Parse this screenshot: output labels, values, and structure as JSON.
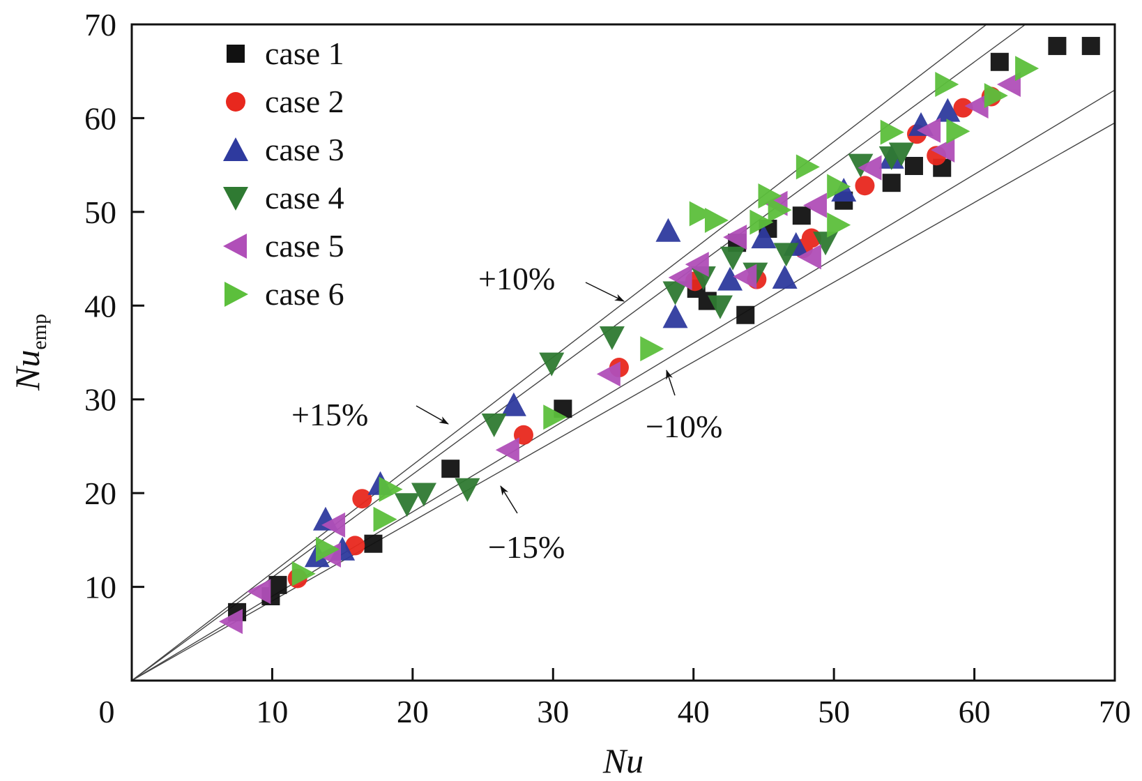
{
  "chart_data": {
    "type": "scatter",
    "title": "",
    "xlabel": "Nu",
    "ylabel": "Nu",
    "ylabel_subscript": "emp",
    "xlim": [
      0,
      70
    ],
    "ylim": [
      0,
      70
    ],
    "xticks": [
      0,
      10,
      20,
      30,
      40,
      50,
      60,
      70
    ],
    "yticks": [
      10,
      20,
      30,
      40,
      50,
      60,
      70
    ],
    "xtick_labels": [
      "0",
      "10",
      "20",
      "30",
      "40",
      "50",
      "60",
      "70"
    ],
    "ytick_labels": [
      "10",
      "20",
      "30",
      "40",
      "50",
      "60",
      "70"
    ],
    "grid": false,
    "legend_position": "top-left",
    "reference_lines": [
      {
        "label": "+15%",
        "slope": 1.15
      },
      {
        "label": "+10%",
        "slope": 1.1
      },
      {
        "label": "-10%",
        "slope": 0.9
      },
      {
        "label": "-15%",
        "slope": 0.85
      }
    ],
    "annotations": [
      {
        "text": "+10%",
        "target": "+10%"
      },
      {
        "text": "+15%",
        "target": "+15%"
      },
      {
        "text": "−10%",
        "target": "-10%"
      },
      {
        "text": "−15%",
        "target": "-15%"
      }
    ],
    "series": [
      {
        "name": "case 1",
        "marker": "square",
        "color": "#111111",
        "points": [
          [
            7.5,
            7.3
          ],
          [
            9.9,
            9.0
          ],
          [
            10.4,
            10.2
          ],
          [
            17.2,
            14.6
          ],
          [
            22.7,
            22.6
          ],
          [
            30.7,
            29.0
          ],
          [
            40.2,
            41.8
          ],
          [
            41.0,
            40.5
          ],
          [
            43.1,
            46.7
          ],
          [
            43.7,
            39.0
          ],
          [
            45.3,
            48.2
          ],
          [
            47.7,
            49.6
          ],
          [
            50.7,
            51.2
          ],
          [
            54.1,
            53.1
          ],
          [
            55.7,
            54.9
          ],
          [
            57.7,
            54.7
          ],
          [
            61.8,
            66.0
          ],
          [
            65.9,
            67.7
          ],
          [
            68.3,
            67.7
          ]
        ]
      },
      {
        "name": "case 2",
        "marker": "circle",
        "color": "#e8281e",
        "points": [
          [
            11.8,
            10.9
          ],
          [
            16.4,
            19.4
          ],
          [
            15.9,
            14.4
          ],
          [
            27.9,
            26.2
          ],
          [
            34.7,
            33.4
          ],
          [
            40.1,
            42.6
          ],
          [
            44.5,
            42.8
          ],
          [
            48.4,
            47.2
          ],
          [
            47.8,
            46.1
          ],
          [
            52.2,
            52.8
          ],
          [
            55.9,
            58.3
          ],
          [
            57.3,
            56.0
          ],
          [
            59.2,
            61.1
          ],
          [
            61.2,
            62.3
          ]
        ]
      },
      {
        "name": "case 3",
        "marker": "triangle-up",
        "color": "#2e3a9e",
        "points": [
          [
            13.8,
            17.2
          ],
          [
            13.2,
            13.3
          ],
          [
            15.0,
            14.0
          ],
          [
            17.7,
            21.0
          ],
          [
            27.2,
            29.4
          ],
          [
            38.2,
            48.0
          ],
          [
            38.7,
            38.8
          ],
          [
            42.6,
            42.8
          ],
          [
            45.0,
            47.3
          ],
          [
            46.5,
            43.0
          ],
          [
            47.3,
            46.5
          ],
          [
            50.7,
            52.3
          ],
          [
            54.1,
            55.8
          ],
          [
            56.2,
            59.3
          ],
          [
            58.1,
            60.8
          ]
        ]
      },
      {
        "name": "case 4",
        "marker": "triangle-down",
        "color": "#2f7a32",
        "points": [
          [
            19.6,
            18.8
          ],
          [
            20.8,
            19.9
          ],
          [
            23.9,
            20.4
          ],
          [
            25.8,
            27.3
          ],
          [
            29.9,
            33.8
          ],
          [
            34.2,
            36.6
          ],
          [
            38.7,
            41.4
          ],
          [
            40.7,
            43.0
          ],
          [
            42.8,
            45.1
          ],
          [
            41.9,
            39.9
          ],
          [
            44.4,
            43.4
          ],
          [
            46.6,
            45.5
          ],
          [
            49.4,
            46.7
          ],
          [
            51.9,
            55.0
          ],
          [
            54.1,
            55.8
          ],
          [
            54.8,
            56.2
          ]
        ]
      },
      {
        "name": "case 5",
        "marker": "triangle-left",
        "color": "#b04fb8",
        "points": [
          [
            7.1,
            6.3
          ],
          [
            9.1,
            9.5
          ],
          [
            14.1,
            13.4
          ],
          [
            14.4,
            16.6
          ],
          [
            26.8,
            24.6
          ],
          [
            34.0,
            32.7
          ],
          [
            39.1,
            43.0
          ],
          [
            40.3,
            44.4
          ],
          [
            43.7,
            43.1
          ],
          [
            43.0,
            47.3
          ],
          [
            45.9,
            50.9
          ],
          [
            48.3,
            45.2
          ],
          [
            48.7,
            50.7
          ],
          [
            52.6,
            54.7
          ],
          [
            56.8,
            58.7
          ],
          [
            57.8,
            56.6
          ],
          [
            60.2,
            61.3
          ],
          [
            62.5,
            63.6
          ]
        ]
      },
      {
        "name": "case 6",
        "marker": "triangle-right",
        "color": "#5cbf3c",
        "points": [
          [
            12.2,
            11.4
          ],
          [
            13.9,
            14.0
          ],
          [
            18.0,
            17.2
          ],
          [
            18.4,
            20.4
          ],
          [
            30.1,
            28.1
          ],
          [
            37.0,
            35.4
          ],
          [
            40.5,
            49.8
          ],
          [
            41.6,
            49.1
          ],
          [
            45.4,
            51.7
          ],
          [
            44.8,
            48.9
          ],
          [
            46.1,
            50.2
          ],
          [
            48.1,
            54.8
          ],
          [
            50.3,
            48.6
          ],
          [
            50.3,
            52.7
          ],
          [
            54.1,
            58.5
          ],
          [
            58.0,
            63.6
          ],
          [
            58.8,
            58.6
          ],
          [
            61.5,
            62.4
          ],
          [
            63.7,
            65.3
          ]
        ]
      }
    ]
  }
}
